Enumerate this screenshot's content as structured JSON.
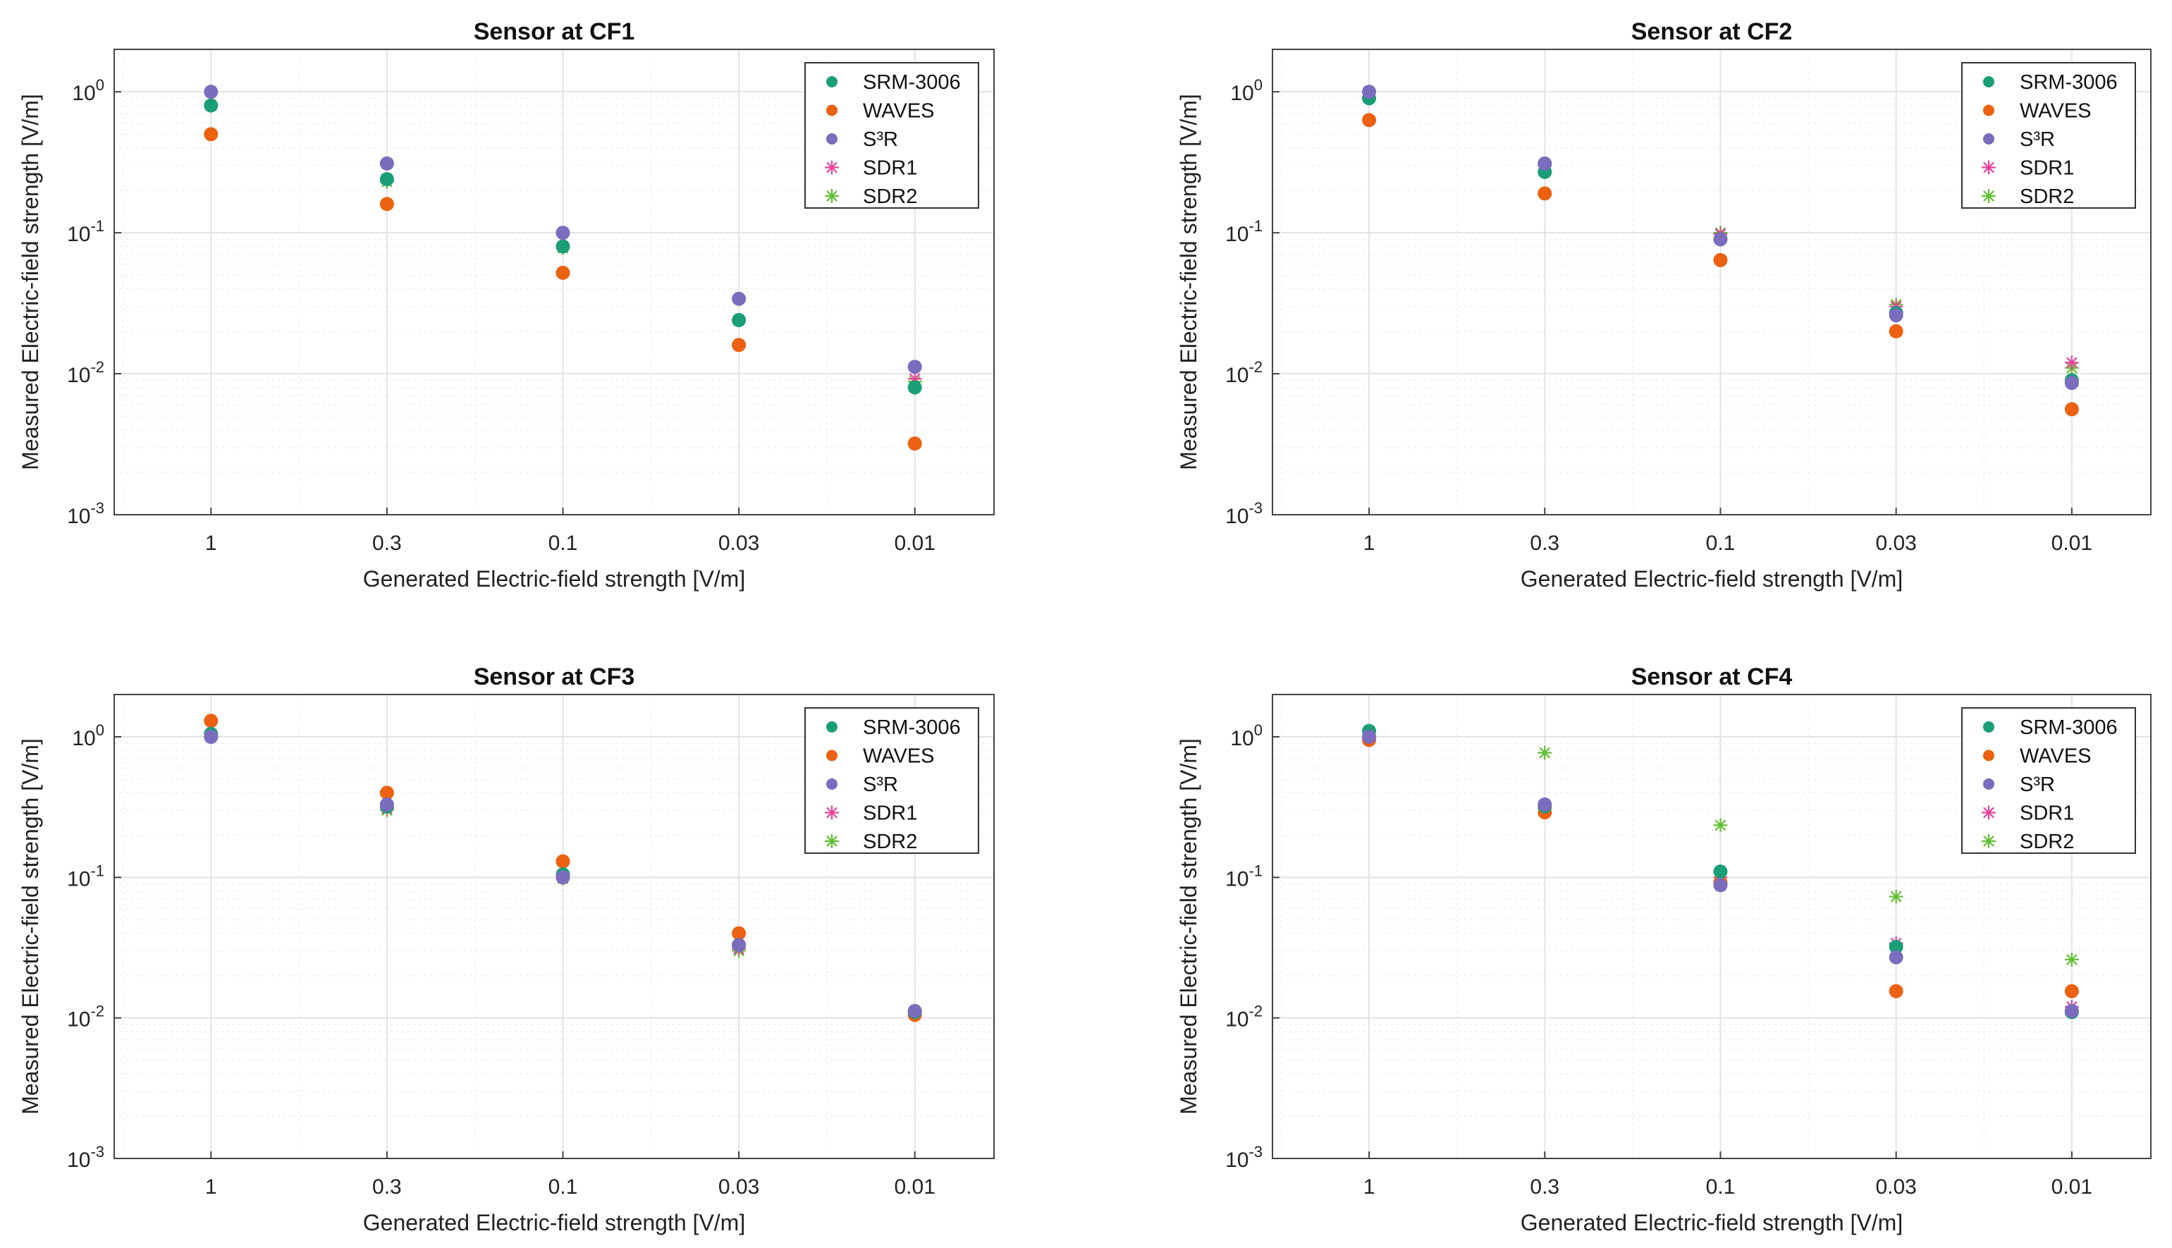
{
  "colors": {
    "srm": "#1a9e77",
    "waves": "#ec6212",
    "s3r": "#7b6cbd",
    "sdr1": "#e8409a",
    "sdr2": "#5cbf2e",
    "grid": "#e3e3e3",
    "axis": "#444444"
  },
  "legend_entries": [
    "SRM-3006",
    "WAVES",
    "S³R",
    "SDR1",
    "SDR2"
  ],
  "y_ticks": [
    {
      "value": 1,
      "base": "10",
      "exp": "0"
    },
    {
      "value": 0.1,
      "base": "10",
      "exp": "-1"
    },
    {
      "value": 0.01,
      "base": "10",
      "exp": "-2"
    },
    {
      "value": 0.001,
      "base": "10",
      "exp": "-3"
    }
  ],
  "chart_data": [
    {
      "type": "scatter",
      "title": "Sensor at CF1",
      "xlabel": "Generated Electric-field strength [V/m]",
      "ylabel": "Measured Electric-field strength [V/m]",
      "categories": [
        "1",
        "0.3",
        "0.1",
        "0.03",
        "0.01"
      ],
      "ylim": [
        0.001,
        2
      ],
      "yscale": "log",
      "grid": true,
      "legend": "top-right",
      "series": [
        {
          "name": "SRM-3006",
          "marker": "dot",
          "values": [
            0.8,
            0.24,
            0.08,
            0.024,
            0.008
          ]
        },
        {
          "name": "WAVES",
          "marker": "dot",
          "values": [
            0.5,
            0.16,
            0.052,
            0.016,
            0.0032
          ]
        },
        {
          "name": "S³R",
          "marker": "dot",
          "values": [
            1.0,
            0.31,
            0.1,
            0.034,
            0.0112
          ]
        },
        {
          "name": "SDR1",
          "marker": "star",
          "values": [
            0.8,
            0.24,
            0.08,
            0.024,
            0.0092
          ]
        },
        {
          "name": "SDR2",
          "marker": "star",
          "values": [
            0.8,
            0.23,
            0.078,
            0.024,
            0.0088
          ]
        }
      ]
    },
    {
      "type": "scatter",
      "title": "Sensor at CF2",
      "xlabel": "Generated Electric-field strength [V/m]",
      "ylabel": "Measured Electric-field strength [V/m]",
      "categories": [
        "1",
        "0.3",
        "0.1",
        "0.03",
        "0.01"
      ],
      "ylim": [
        0.001,
        2
      ],
      "yscale": "log",
      "grid": true,
      "legend": "top-right",
      "series": [
        {
          "name": "SRM-3006",
          "marker": "dot",
          "values": [
            0.9,
            0.27,
            0.09,
            0.027,
            0.009
          ]
        },
        {
          "name": "WAVES",
          "marker": "dot",
          "values": [
            0.63,
            0.19,
            0.064,
            0.02,
            0.0056
          ]
        },
        {
          "name": "S³R",
          "marker": "dot",
          "values": [
            1.0,
            0.31,
            0.09,
            0.026,
            0.0086
          ]
        },
        {
          "name": "SDR1",
          "marker": "star",
          "values": [
            1.0,
            0.3,
            0.098,
            0.03,
            0.012
          ]
        },
        {
          "name": "SDR2",
          "marker": "star",
          "values": [
            1.0,
            0.3,
            0.1,
            0.031,
            0.011
          ]
        }
      ]
    },
    {
      "type": "scatter",
      "title": "Sensor at CF3",
      "xlabel": "Generated Electric-field strength [V/m]",
      "ylabel": "Measured Electric-field strength [V/m]",
      "categories": [
        "1",
        "0.3",
        "0.1",
        "0.03",
        "0.01"
      ],
      "ylim": [
        0.001,
        2
      ],
      "yscale": "log",
      "grid": true,
      "legend": "top-right",
      "series": [
        {
          "name": "SRM-3006",
          "marker": "dot",
          "values": [
            1.05,
            0.32,
            0.105,
            0.033,
            0.011
          ]
        },
        {
          "name": "WAVES",
          "marker": "dot",
          "values": [
            1.3,
            0.4,
            0.13,
            0.04,
            0.0105
          ]
        },
        {
          "name": "S³R",
          "marker": "dot",
          "values": [
            1.0,
            0.33,
            0.1,
            0.033,
            0.0112
          ]
        },
        {
          "name": "SDR1",
          "marker": "star",
          "values": [
            1.0,
            0.31,
            0.1,
            0.031,
            0.011
          ]
        },
        {
          "name": "SDR2",
          "marker": "star",
          "values": [
            1.0,
            0.3,
            0.098,
            0.03,
            0.011
          ]
        }
      ]
    },
    {
      "type": "scatter",
      "title": "Sensor at CF4",
      "xlabel": "Generated Electric-field strength [V/m]",
      "ylabel": "Measured Electric-field strength [V/m]",
      "categories": [
        "1",
        "0.3",
        "0.1",
        "0.03",
        "0.01"
      ],
      "ylim": [
        0.001,
        2
      ],
      "yscale": "log",
      "grid": true,
      "legend": "top-right",
      "series": [
        {
          "name": "SRM-3006",
          "marker": "dot",
          "values": [
            1.1,
            0.32,
            0.11,
            0.032,
            0.011
          ]
        },
        {
          "name": "WAVES",
          "marker": "dot",
          "values": [
            0.95,
            0.29,
            0.092,
            0.0155,
            0.0155
          ]
        },
        {
          "name": "S³R",
          "marker": "dot",
          "values": [
            1.0,
            0.33,
            0.088,
            0.027,
            0.0112
          ]
        },
        {
          "name": "SDR1",
          "marker": "star",
          "values": [
            1.0,
            0.31,
            0.1,
            0.034,
            0.012
          ]
        },
        {
          "name": "SDR2",
          "marker": "star",
          "values": [
            1.0,
            0.77,
            0.235,
            0.073,
            0.026
          ]
        }
      ]
    }
  ]
}
